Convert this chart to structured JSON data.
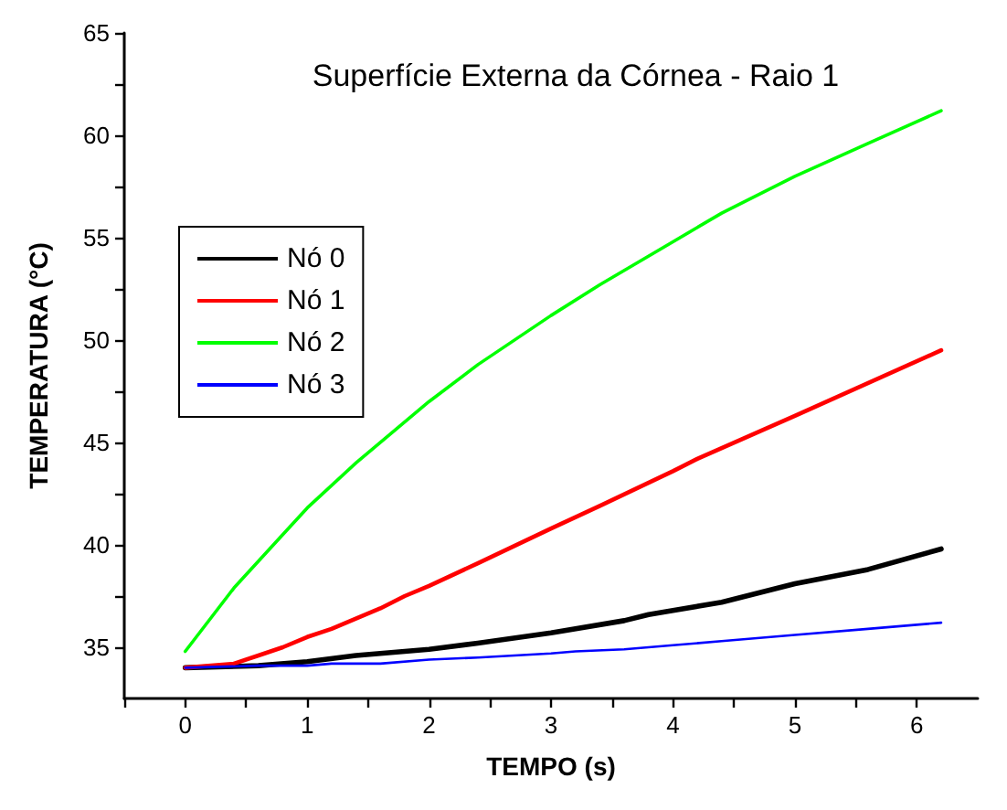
{
  "chart_data": {
    "type": "line",
    "title": "Superfície Externa da Córnea - Raio 1",
    "xlabel": "TEMPO (s)",
    "ylabel": "TEMPERATURA (°C)",
    "xlim": [
      -0.5,
      6.5
    ],
    "ylim": [
      32.5,
      65
    ],
    "xticks": [
      {
        "value": -0.5,
        "label": null
      },
      0,
      {
        "value": 0.5,
        "label": null
      },
      1,
      {
        "value": 1.5,
        "label": null
      },
      2,
      {
        "value": 2.5,
        "label": null
      },
      3,
      {
        "value": 3.5,
        "label": null
      },
      4,
      {
        "value": 4.5,
        "label": null
      },
      5,
      {
        "value": 5.5,
        "label": null
      },
      6
    ],
    "yticks": [
      35,
      {
        "value": 37.5,
        "label": null
      },
      40,
      {
        "value": 42.5,
        "label": null
      },
      45,
      {
        "value": 47.5,
        "label": null
      },
      50,
      {
        "value": 52.5,
        "label": null
      },
      55,
      {
        "value": 57.5,
        "label": null
      },
      60,
      {
        "value": 62.5,
        "label": null
      },
      65
    ],
    "grid": false,
    "legend": "top left",
    "marker": "none",
    "line_style": "solid",
    "series": [
      {
        "name": "Nó 0",
        "color": "#000000",
        "x": [
          0,
          0.6,
          1,
          1.4,
          2,
          2.4,
          3,
          3.6,
          3.8,
          4,
          4.4,
          5,
          5.6,
          6.2
        ],
        "values": [
          34,
          34.1,
          34.3,
          34.6,
          34.9,
          35.2,
          35.7,
          36.3,
          36.6,
          36.8,
          37.2,
          38.1,
          38.8,
          39.8
        ]
      },
      {
        "name": "Nó 1",
        "color": "#ff0000",
        "x": [
          0,
          0.4,
          0.6,
          0.8,
          1,
          1.2,
          1.6,
          1.8,
          2,
          2.4,
          3,
          3.4,
          4,
          4.2,
          5,
          6.2
        ],
        "values": [
          34,
          34.2,
          34.6,
          35.0,
          35.5,
          35.9,
          36.9,
          37.5,
          38,
          39.1,
          40.8,
          41.9,
          43.6,
          44.2,
          46.3,
          49.5
        ]
      },
      {
        "name": "Nó 2",
        "color": "#00ff00",
        "x": [
          0,
          0.4,
          0.8,
          1,
          1.4,
          2,
          2.4,
          3,
          3.4,
          4,
          4.4,
          5,
          5.6,
          6.2
        ],
        "values": [
          34.8,
          37.9,
          40.5,
          41.8,
          44,
          47,
          48.8,
          51.2,
          52.7,
          54.8,
          56.2,
          58.0,
          59.6,
          61.2
        ]
      },
      {
        "name": "Nó 3",
        "color": "#0000ff",
        "x": [
          0,
          0.6,
          1,
          1.2,
          1.6,
          2,
          2.4,
          3,
          3.2,
          3.6,
          4,
          4.4,
          5,
          5.6,
          6.2
        ],
        "values": [
          34,
          34.1,
          34.1,
          34.2,
          34.2,
          34.4,
          34.5,
          34.7,
          34.8,
          34.9,
          35.1,
          35.3,
          35.6,
          35.9,
          36.2
        ]
      }
    ]
  }
}
